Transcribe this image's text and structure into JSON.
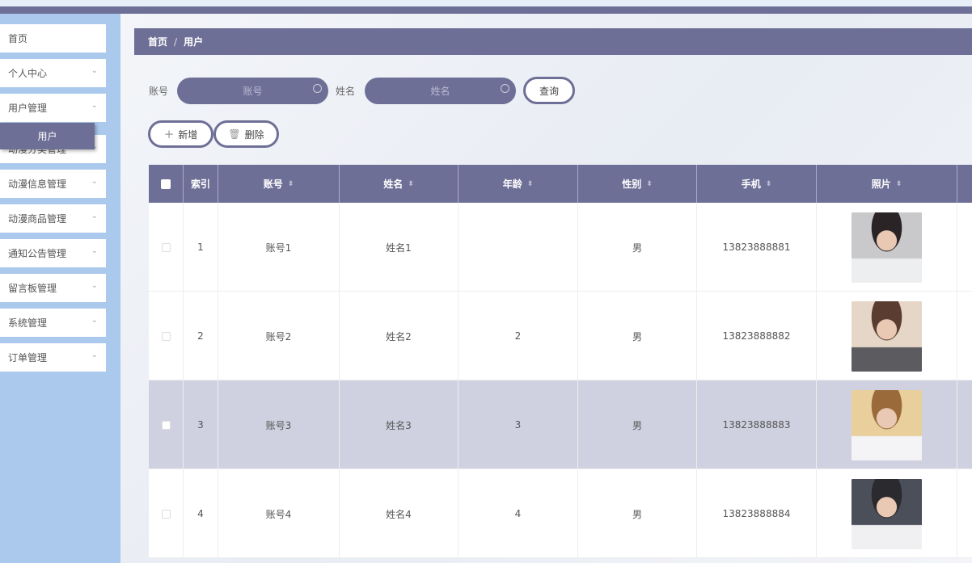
{
  "sidebar": {
    "items": [
      {
        "label": "首页",
        "expandable": false
      },
      {
        "label": "个人中心",
        "expandable": true
      },
      {
        "label": "用户管理",
        "expandable": true
      },
      {
        "label": "动漫分类管理",
        "expandable": true
      },
      {
        "label": "动漫信息管理",
        "expandable": true
      },
      {
        "label": "动漫商品管理",
        "expandable": true
      },
      {
        "label": "通知公告管理",
        "expandable": true
      },
      {
        "label": "留言板管理",
        "expandable": true
      },
      {
        "label": "系统管理",
        "expandable": true
      },
      {
        "label": "订单管理",
        "expandable": true
      }
    ],
    "active_sub": "用户"
  },
  "breadcrumb": {
    "home": "首页",
    "sep": "/",
    "current": "用户"
  },
  "search": {
    "account_label": "账号",
    "account_placeholder": "账号",
    "name_label": "姓名",
    "name_placeholder": "姓名",
    "query_button": "查询"
  },
  "actions": {
    "add": "新增",
    "delete": "删除"
  },
  "table": {
    "headers": [
      "索引",
      "账号",
      "姓名",
      "年龄",
      "性别",
      "手机",
      "照片"
    ],
    "rows": [
      {
        "index": "1",
        "account": "账号1",
        "name": "姓名1",
        "age": "",
        "gender": "男",
        "phone": "13823888881",
        "highlight": false
      },
      {
        "index": "2",
        "account": "账号2",
        "name": "姓名2",
        "age": "2",
        "gender": "男",
        "phone": "13823888882",
        "highlight": false
      },
      {
        "index": "3",
        "account": "账号3",
        "name": "姓名3",
        "age": "3",
        "gender": "男",
        "phone": "13823888883",
        "highlight": true
      },
      {
        "index": "4",
        "account": "账号4",
        "name": "姓名4",
        "age": "4",
        "gender": "男",
        "phone": "13823888884",
        "highlight": false
      }
    ]
  },
  "colors": {
    "accent": "#6e6f96",
    "sidebar": "#abc9ec",
    "row_highlight": "#d0d1e0"
  }
}
